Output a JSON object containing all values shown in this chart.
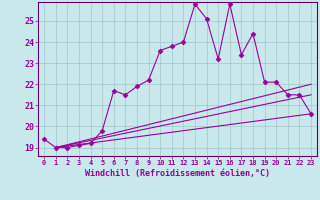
{
  "xlabel": "Windchill (Refroidissement éolien,°C)",
  "bg_color": "#c8e8ec",
  "grid_color": "#a0c8cc",
  "line_color": "#990099",
  "spine_color": "#660066",
  "x_ticks": [
    0,
    1,
    2,
    3,
    4,
    5,
    6,
    7,
    8,
    9,
    10,
    11,
    12,
    13,
    14,
    15,
    16,
    17,
    18,
    19,
    20,
    21,
    22,
    23
  ],
  "ylim": [
    18.6,
    25.9
  ],
  "xlim": [
    -0.5,
    23.5
  ],
  "yticks": [
    19,
    20,
    21,
    22,
    23,
    24,
    25
  ],
  "series": [
    {
      "x": [
        0,
        1,
        2,
        3,
        4,
        5,
        6,
        7,
        8,
        9,
        10,
        11,
        12,
        13,
        14,
        15,
        16,
        17,
        18,
        19,
        20,
        21,
        22,
        23
      ],
      "y": [
        19.4,
        19.0,
        19.0,
        19.1,
        19.2,
        19.8,
        21.7,
        21.5,
        21.9,
        22.2,
        23.6,
        23.8,
        24.0,
        25.8,
        25.1,
        23.2,
        25.8,
        23.4,
        24.4,
        22.1,
        22.1,
        21.5,
        21.5,
        20.6
      ],
      "marker": "D",
      "markersize": 2.5,
      "linestyle": "-",
      "linewidth": 0.8,
      "has_marker": true
    },
    {
      "x": [
        1,
        23
      ],
      "y": [
        19.0,
        22.0
      ],
      "marker": null,
      "markersize": 0,
      "linestyle": "-",
      "linewidth": 0.8,
      "has_marker": false
    },
    {
      "x": [
        1,
        23
      ],
      "y": [
        19.0,
        21.5
      ],
      "marker": null,
      "markersize": 0,
      "linestyle": "-",
      "linewidth": 0.8,
      "has_marker": false
    },
    {
      "x": [
        1,
        23
      ],
      "y": [
        19.0,
        20.6
      ],
      "marker": null,
      "markersize": 0,
      "linestyle": "-",
      "linewidth": 0.8,
      "has_marker": false
    }
  ]
}
